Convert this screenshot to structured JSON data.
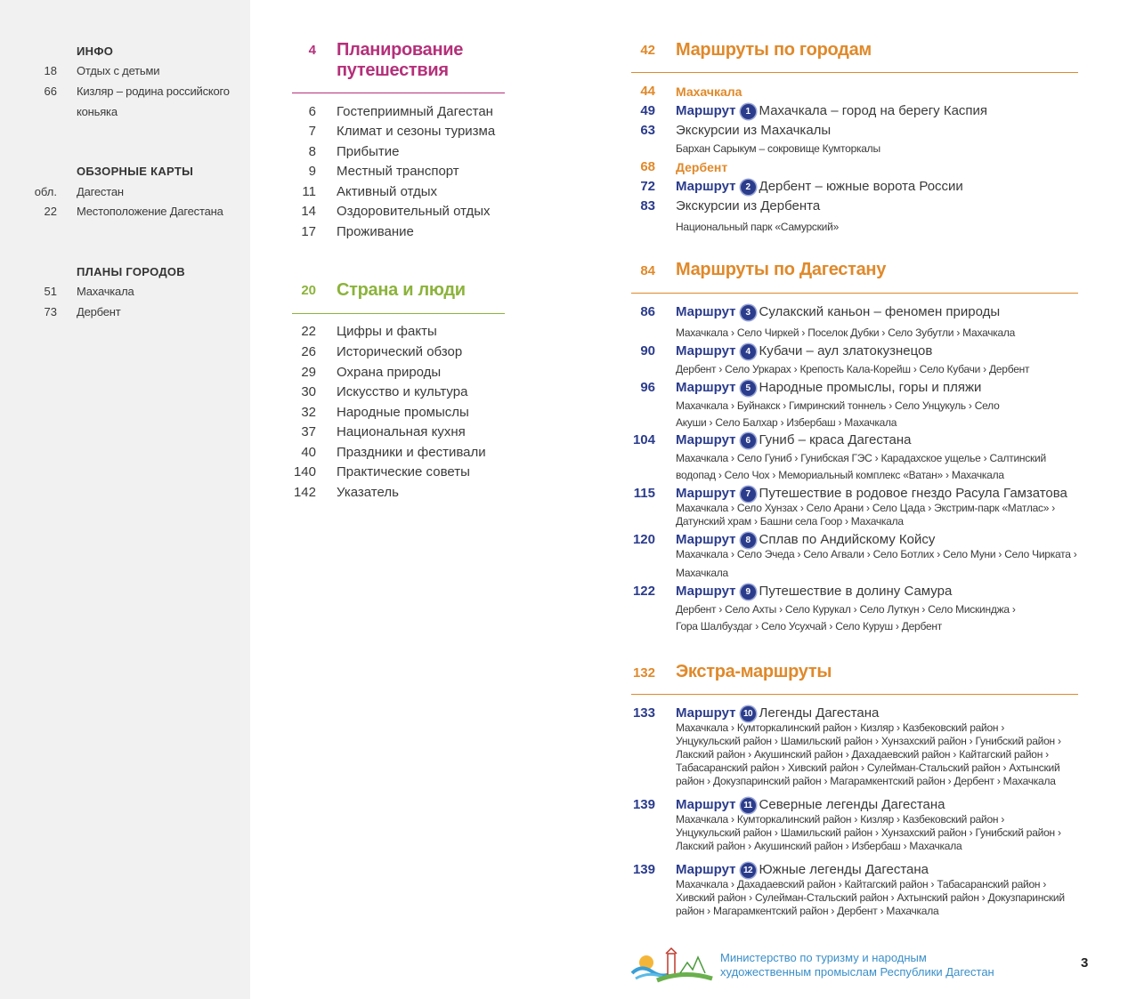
{
  "sidebar": {
    "info": {
      "title": "ИНФО",
      "items": [
        {
          "page": "18",
          "label": "Отдых с детьми"
        },
        {
          "page": "66",
          "label_lines": [
            "Кизляр – родина российского",
            "коньяка"
          ]
        }
      ]
    },
    "maps": {
      "title": "ОБЗОРНЫЕ КАРТЫ",
      "items": [
        {
          "page": "обл.",
          "label": "Дагестан"
        },
        {
          "page": "22",
          "label": "Местоположение Дагестана"
        }
      ]
    },
    "city_plans": {
      "title": "ПЛАНЫ ГОРОДОВ",
      "items": [
        {
          "page": "51",
          "label": "Махачкала"
        },
        {
          "page": "73",
          "label": "Дербент"
        }
      ]
    }
  },
  "middle": {
    "planning": {
      "page": "4",
      "title_lines": [
        "Планирование",
        "путешествия"
      ],
      "color": "#b5307a",
      "items": [
        {
          "page": "6",
          "label": "Гостеприимный Дагестан"
        },
        {
          "page": "7",
          "label": "Климат и сезоны туризма"
        },
        {
          "page": "8",
          "label": "Прибытие"
        },
        {
          "page": "9",
          "label": "Местный транспорт"
        },
        {
          "page": "11",
          "label": "Активный отдых"
        },
        {
          "page": "14",
          "label": "Оздоровительный отдых"
        },
        {
          "page": "17",
          "label": "Проживание"
        }
      ]
    },
    "country": {
      "page": "20",
      "title": "Страна и люди",
      "color": "#8cb33b",
      "items": [
        {
          "page": "22",
          "label": "Цифры и факты"
        },
        {
          "page": "26",
          "label": "Исторический обзор"
        },
        {
          "page": "29",
          "label": "Охрана природы"
        },
        {
          "page": "30",
          "label": "Искусство и культура"
        },
        {
          "page": "32",
          "label": "Народные промыслы"
        },
        {
          "page": "37",
          "label": "Национальная кухня"
        },
        {
          "page": "40",
          "label": "Праздники и фестивали"
        },
        {
          "page": "140",
          "label": "Практические советы"
        },
        {
          "page": "142",
          "label": "Указатель"
        }
      ]
    }
  },
  "right": {
    "route_label": "Маршрут",
    "cities": {
      "page": "42",
      "title": "Маршруты по городам",
      "makhachkala": {
        "page": "44",
        "label": "Махачкала"
      },
      "r1": {
        "page": "49",
        "num": "1",
        "title": "Махачкала – город на берегу Каспия"
      },
      "exc1": {
        "page": "63",
        "label": "Экскурсии из Махачкалы",
        "sub": "Бархан Сарыкум – сокровище Кумторкалы"
      },
      "derbent": {
        "page": "68",
        "label": "Дербент"
      },
      "r2": {
        "page": "72",
        "num": "2",
        "title": "Дербент – южные ворота России"
      },
      "exc2": {
        "page": "83",
        "label": "Экскурсии из Дербента",
        "sub": "Национальный парк «Самурский»"
      }
    },
    "dagestan": {
      "page": "84",
      "title": "Маршруты по Дагестану",
      "routes": [
        {
          "page": "86",
          "num": "3",
          "title": "Сулакский каньон – феномен природы",
          "sub": [
            "Махачкала › Село Чиркей › Поселок Дубки › Село Зубутли › Махачкала"
          ]
        },
        {
          "page": "90",
          "num": "4",
          "title": "Кубачи – аул златокузнецов",
          "sub": [
            "Дербент › Село Уркарах › Крепость Кала-Корейш › Село Кубачи › Дербент"
          ]
        },
        {
          "page": "96",
          "num": "5",
          "title": "Народные промыслы, горы и пляжи",
          "sub": [
            "Махачкала › Буйнакск › Гимринский тоннель › Село Унцукуль › Село",
            "Акуши › Село Балхар › Избербаш › Махачкала"
          ]
        },
        {
          "page": "104",
          "num": "6",
          "title": "Гуниб – краса Дагестана",
          "sub": [
            "Махачкала › Село Гуниб › Гунибская ГЭС › Карадахское ущелье › Салтинский",
            "водопад › Село Чох › Мемориальный комплекс «Ватан» › Махачкала"
          ]
        },
        {
          "page": "115",
          "num": "7",
          "title": "Путешествие в родовое гнездо Расула Гамзатова",
          "sub": [
            "Махачкала › Село Хунзах › Село Арани › Село Цада › Экстрим-парк «Матлас» ›",
            "Датунский храм › Башни села Гоор › Махачкала"
          ]
        },
        {
          "page": "120",
          "num": "8",
          "title": "Сплав по Андийскому Койсу",
          "sub": [
            "Махачкала › Село Эчеда › Село Агвали › Село Ботлих › Село Муни › Село Чирката ›",
            "Махачкала"
          ]
        },
        {
          "page": "122",
          "num": "9",
          "title": "Путешествие в долину Самура",
          "sub": [
            "Дербент › Село Ахты › Село Курукал › Село Луткун › Село Мискинджа ›",
            "Гора Шалбуздаг › Село Усухчай › Село Куруш › Дербент"
          ]
        }
      ]
    },
    "extra": {
      "page": "132",
      "title": "Экстра-маршруты",
      "routes": [
        {
          "page": "133",
          "num": "10",
          "title": "Легенды Дагестана",
          "sub": [
            "Махачкала › Кумторкалинский район › Кизляр › Казбековский район ›",
            "Унцукульский район › Шамильский район › Хунзахский район › Гунибский район ›",
            "Лакский район › Акушинский район › Дахадаевский район › Кайтагский район ›",
            "Табасаранский район › Хивский район › Сулейман-Стальский район › Ахтынский",
            "район › Докузпаринский район › Магарамкентский район › Дербент › Махачкала"
          ]
        },
        {
          "page": "139",
          "num": "11",
          "title": "Северные легенды Дагестана",
          "sub": [
            "Махачкала › Кумторкалинский район › Кизляр › Казбековский район ›",
            "Унцукульский район › Шамильский район › Хунзахский район › Гунибский район ›",
            "Лакский район › Акушинский район › Избербаш › Махачкала"
          ]
        },
        {
          "page": "139",
          "num": "12",
          "title": "Южные легенды Дагестана",
          "sub": [
            "Махачкала › Дахадаевский район › Кайтагский район › Табасаранский район ›",
            "Хивский район › Сулейман-Стальский район › Ахтынский район › Докузпаринский",
            "район › Магарамкентский район › Дербент › Махачкала"
          ]
        }
      ]
    }
  },
  "footer": {
    "ministry_lines": [
      "Министерство по туризму и народным",
      "художественным промыслам Республики Дагестан"
    ],
    "page_number": "3"
  },
  "colors": {
    "planning": "#b5307a",
    "country": "#8cb33b",
    "routes_heading": "#e0892a",
    "route_label": "#2b3c8c",
    "footer_text": "#3a8fc9",
    "sidebar_bg": "#f1f1f1"
  }
}
